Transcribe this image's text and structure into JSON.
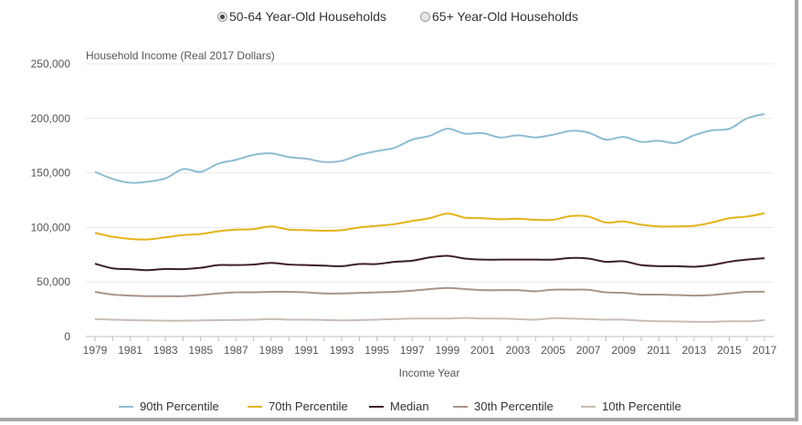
{
  "toggles": [
    {
      "label": "50-64 Year-Old Households",
      "selected": true
    },
    {
      "label": "65+ Year-Old Households",
      "selected": false
    }
  ],
  "chart_data": {
    "type": "line",
    "title": "",
    "ylabel": "Household Income (Real 2017 Dollars)",
    "xlabel": "Income Year",
    "ylim": [
      0,
      250000
    ],
    "yticks": [
      "0",
      "50,000",
      "100,000",
      "150,000",
      "200,000",
      "250,000"
    ],
    "xticks": [
      "1979",
      "1981",
      "1983",
      "1985",
      "1987",
      "1989",
      "1991",
      "1993",
      "1995",
      "1997",
      "1999",
      "2001",
      "2003",
      "2005",
      "2007",
      "2009",
      "2011",
      "2013",
      "2015",
      "2017"
    ],
    "grid": "horizontal",
    "legend_position": "bottom",
    "x": [
      1979,
      1980,
      1981,
      1982,
      1983,
      1984,
      1985,
      1986,
      1987,
      1988,
      1989,
      1990,
      1991,
      1992,
      1993,
      1994,
      1995,
      1996,
      1997,
      1998,
      1999,
      2000,
      2001,
      2002,
      2003,
      2004,
      2005,
      2006,
      2007,
      2008,
      2009,
      2010,
      2011,
      2012,
      2013,
      2014,
      2015,
      2016,
      2017
    ],
    "series": [
      {
        "name": "90th Percentile",
        "color": "#8fbcd0",
        "values": [
          151000,
          144500,
          141000,
          142000,
          145000,
          153500,
          151000,
          158500,
          162000,
          166500,
          168000,
          164500,
          163000,
          160000,
          161000,
          166500,
          170000,
          173000,
          180500,
          184000,
          190500,
          186000,
          186500,
          182500,
          184500,
          182500,
          185000,
          188500,
          187000,
          180500,
          183000,
          178500,
          179500,
          177500,
          184500,
          189000,
          190500,
          200000,
          204000
        ]
      },
      {
        "name": "70th Percentile",
        "color": "#e3b417",
        "values": [
          95000,
          91500,
          89500,
          89000,
          91000,
          93000,
          94000,
          96500,
          98000,
          98500,
          101000,
          98000,
          97500,
          97000,
          97500,
          100000,
          101500,
          103000,
          106000,
          108500,
          112800,
          109000,
          108500,
          107500,
          108000,
          107000,
          107000,
          110500,
          110000,
          104500,
          105500,
          102500,
          101000,
          101000,
          101500,
          104500,
          108500,
          110000,
          113000
        ]
      },
      {
        "name": "Median",
        "color": "#3d1f26",
        "values": [
          66800,
          62500,
          61800,
          60800,
          62000,
          61800,
          63000,
          65500,
          65500,
          66000,
          67500,
          66000,
          65500,
          65000,
          64500,
          66500,
          66500,
          68500,
          69500,
          72500,
          74000,
          71500,
          70500,
          70500,
          70500,
          70500,
          70500,
          72000,
          71500,
          68500,
          69000,
          65500,
          64500,
          64500,
          64000,
          65500,
          68500,
          70500,
          71800
        ]
      },
      {
        "name": "30th Percentile",
        "color": "#a89488",
        "values": [
          41000,
          38500,
          37500,
          37000,
          37000,
          37000,
          38000,
          39500,
          40500,
          40500,
          41000,
          41000,
          40500,
          39500,
          39500,
          40000,
          40500,
          41000,
          42000,
          43500,
          44500,
          43500,
          42500,
          42500,
          42500,
          41500,
          43000,
          43000,
          42800,
          40500,
          40000,
          38500,
          38500,
          38000,
          37500,
          38000,
          39500,
          41000,
          41000
        ]
      },
      {
        "name": "10th Percentile",
        "color": "#c8bdb4",
        "values": [
          16000,
          15500,
          15000,
          14800,
          14500,
          14500,
          14800,
          15000,
          15200,
          15500,
          16000,
          15500,
          15500,
          15200,
          14800,
          15000,
          15500,
          16000,
          16500,
          16500,
          16500,
          17000,
          16500,
          16500,
          16000,
          15500,
          16800,
          16500,
          16000,
          15500,
          15500,
          14500,
          14000,
          13800,
          13500,
          13500,
          14000,
          14000,
          15000
        ]
      }
    ]
  }
}
